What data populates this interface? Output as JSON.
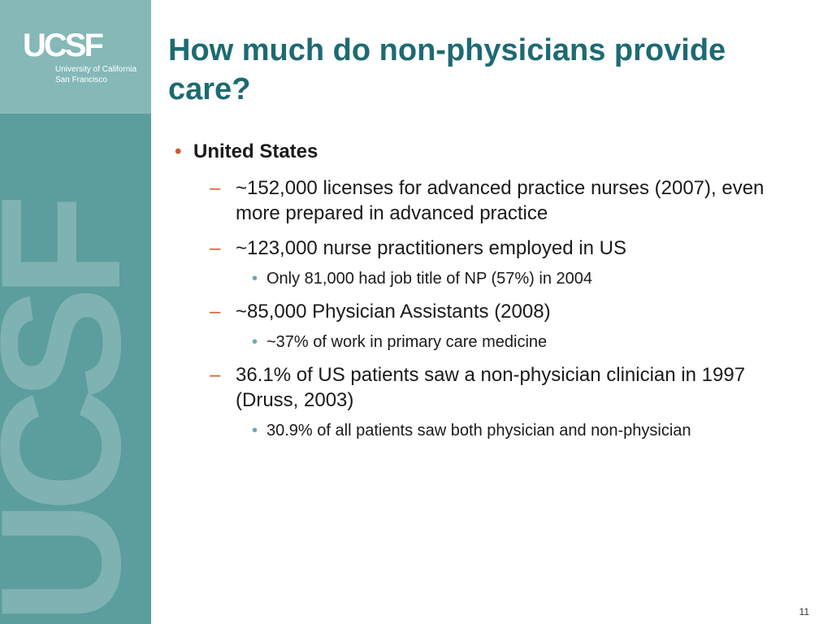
{
  "logo": {
    "mark": "UCSF",
    "line1": "University of California",
    "line2": "San Francisco"
  },
  "watermark": "UCSF",
  "title": "How much do non-physicians provide care?",
  "bullets": [
    {
      "text": "United States",
      "items": [
        {
          "text": "~152,000 licenses for advanced practice nurses (2007), even more prepared in advanced practice",
          "items": []
        },
        {
          "text": "~123,000 nurse practitioners employed in US",
          "items": [
            {
              "text": "Only 81,000 had job title of NP (57%) in 2004"
            }
          ]
        },
        {
          "text": "~85,000 Physician Assistants (2008)",
          "items": [
            {
              "text": "~37% of work in primary care medicine"
            }
          ]
        },
        {
          "text": "36.1% of US patients saw a non-physician clinician in 1997  (Druss, 2003)",
          "items": [
            {
              "text": "30.9% of all patients saw both physician and non-physician"
            }
          ]
        }
      ]
    }
  ],
  "page_number": "11"
}
